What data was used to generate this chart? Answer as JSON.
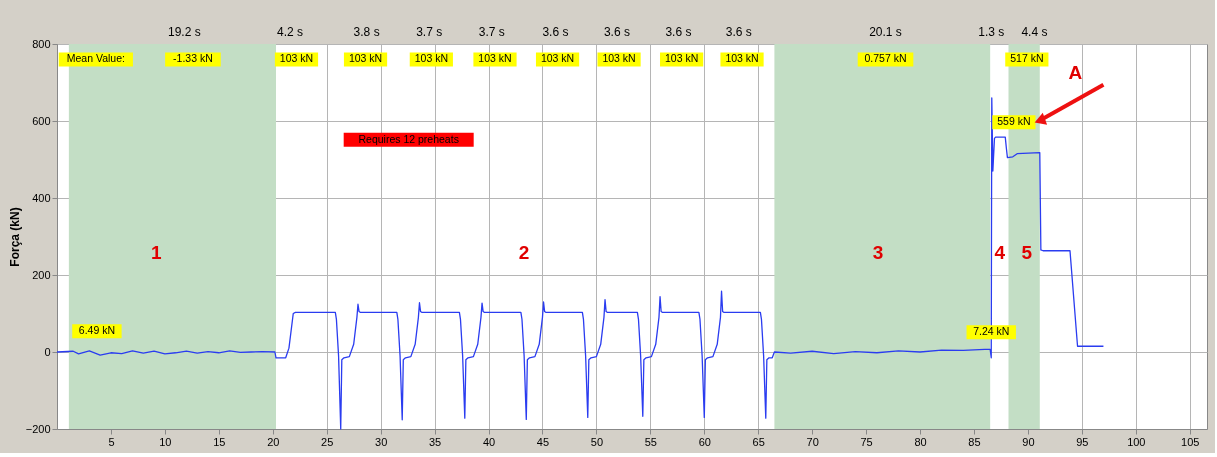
{
  "chart_data": {
    "type": "line",
    "ylabel": "Força (kN)",
    "xlim": [
      0,
      106.6
    ],
    "xticks": [
      5,
      10,
      15,
      20,
      25,
      30,
      35,
      40,
      45,
      50,
      55,
      60,
      65,
      70,
      75,
      80,
      85,
      90,
      95,
      100,
      105
    ],
    "ylim": [
      -200,
      800
    ],
    "yticks": [
      -200,
      0,
      200,
      400,
      600,
      800
    ],
    "grid": true,
    "marker": "none",
    "line_style": "solid",
    "bands": [
      {
        "axis": "x",
        "from": 1.1,
        "to": 20.3,
        "color": "#c3dec5"
      },
      {
        "axis": "x",
        "from": 66.5,
        "to": 86.5,
        "color": "#c3dec5"
      },
      {
        "axis": "x",
        "from": 88.2,
        "to": 91.1,
        "color": "#c3dec5"
      }
    ],
    "series": [
      {
        "color": "#2a3cf0",
        "x": [
          0,
          1.5,
          2.0,
          3,
          4,
          5,
          6,
          7,
          8,
          9,
          10,
          11,
          12,
          13,
          14,
          15,
          16,
          17,
          18,
          19,
          20.2,
          20.3,
          21.2,
          21.5,
          21.9,
          22.1,
          25.8,
          25.9,
          26.1,
          26.3,
          26.4,
          26.6,
          27.1,
          27.5,
          27.8,
          27.9,
          28.0,
          28.1,
          31.5,
          31.6,
          31.8,
          32.0,
          32.1,
          32.3,
          32.8,
          33.2,
          33.5,
          33.6,
          33.7,
          33.8,
          37.3,
          37.4,
          37.6,
          37.8,
          37.9,
          38.1,
          38.6,
          39.0,
          39.3,
          39.4,
          39.5,
          39.6,
          43.0,
          43.1,
          43.3,
          43.5,
          43.6,
          43.8,
          44.3,
          44.7,
          45.0,
          45.1,
          45.2,
          45.3,
          48.7,
          48.8,
          49.0,
          49.2,
          49.3,
          49.5,
          50.0,
          50.4,
          50.7,
          50.8,
          50.9,
          51.0,
          53.8,
          53.9,
          54.1,
          54.3,
          54.4,
          54.6,
          55.1,
          55.5,
          55.8,
          55.9,
          56.0,
          56.1,
          59.5,
          59.6,
          59.8,
          60.0,
          60.1,
          60.3,
          60.8,
          61.2,
          61.5,
          61.6,
          61.7,
          61.8,
          65.2,
          65.3,
          65.5,
          65.7,
          65.8,
          66.0,
          66.3,
          66.5,
          68,
          70,
          72,
          74,
          76,
          78,
          80,
          82,
          84,
          86,
          86.5,
          86.6,
          86.65,
          86.75,
          86.9,
          87.0,
          87.9,
          88.0,
          88.1,
          88.6,
          89.0,
          91.1,
          91.2,
          91.4,
          93.9,
          94.6,
          97.0
        ],
        "values": [
          0,
          2,
          -5,
          3,
          -8,
          -2,
          -4,
          3,
          -3,
          2,
          -5,
          -2,
          2,
          -3,
          1,
          -2,
          3,
          -1,
          0,
          1,
          0,
          -15,
          -15,
          10,
          100,
          103,
          103,
          85,
          -10,
          -200,
          -20,
          -15,
          -12,
          20,
          90,
          124,
          105,
          103,
          103,
          85,
          -10,
          -176,
          -20,
          -15,
          -12,
          20,
          90,
          128,
          105,
          103,
          103,
          85,
          -10,
          -172,
          -20,
          -15,
          -12,
          20,
          90,
          127,
          105,
          103,
          103,
          85,
          -10,
          -175,
          -20,
          -15,
          -12,
          20,
          90,
          130,
          105,
          103,
          103,
          85,
          -10,
          -170,
          -20,
          -15,
          -12,
          20,
          90,
          136,
          105,
          103,
          103,
          85,
          -10,
          -167,
          -20,
          -15,
          -12,
          20,
          90,
          144,
          105,
          103,
          103,
          85,
          -10,
          -170,
          -20,
          -15,
          -12,
          20,
          90,
          158,
          105,
          103,
          103,
          85,
          -10,
          -172,
          -20,
          -15,
          -15,
          0,
          -3,
          2,
          -4,
          1,
          -2,
          3,
          0,
          5,
          4,
          7,
          7,
          -15,
          660,
          470,
          555,
          558,
          558,
          530,
          505,
          507,
          515,
          518,
          265,
          263,
          263,
          15,
          15
        ]
      }
    ],
    "annotations": [
      "19.2 s",
      "4.2 s",
      "3.8 s",
      "3.7 s",
      "3.7 s",
      "3.6 s",
      "3.6 s",
      "3.6 s",
      "3.6 s",
      "20.1 s",
      "1.3 s",
      "4.4 s",
      "Mean Value:",
      "-1.33 kN",
      "103 kN",
      "103 kN",
      "103 kN",
      "103 kN",
      "103 kN",
      "103 kN",
      "103 kN",
      "103 kN",
      "0.757 kN",
      "517 kN",
      "6.49 kN",
      "7.24 kN",
      "559 kN",
      "Requires 12 preheats",
      "1",
      "2",
      "3",
      "4",
      "5",
      "A"
    ]
  }
}
